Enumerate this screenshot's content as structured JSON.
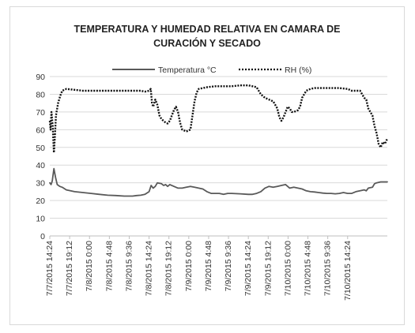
{
  "chart_data": {
    "type": "line",
    "title": [
      "TEMPERATURA Y HUMEDAD RELATIVA EN CAMARA DE",
      "CURACIÓN Y SECADO"
    ],
    "xlabel": "",
    "ylabel": "",
    "ylim": [
      0,
      90
    ],
    "yticks": [
      0,
      10,
      20,
      30,
      40,
      50,
      60,
      70,
      80,
      90
    ],
    "grid": true,
    "legend": "top",
    "x_tick_labels": [
      "7/7/2015 14:24",
      "7/7/2015 19:12",
      "7/8/2015 0:00",
      "7/8/2015 4:48",
      "7/8/2015 9:36",
      "7/8/2015 14:24",
      "7/8/2015 19:12",
      "7/9/2015 0:00",
      "7/9/2015 4:48",
      "7/9/2015 9:36",
      "7/9/2015 14:24",
      "7/9/2015 19:12",
      "7/10/2015 0:00",
      "7/10/2015 4:48",
      "7/10/2015 9:36",
      "7/10/2015 14:24"
    ],
    "x_hours_since_start": {
      "start": "7/7/2015 14:24",
      "end_hours": 72
    },
    "series": [
      {
        "name": "Temperatura °C",
        "style": "solid",
        "color": "#595959",
        "points": [
          [
            0,
            30
          ],
          [
            0.3,
            29
          ],
          [
            0.6,
            31
          ],
          [
            1.0,
            38
          ],
          [
            1.4,
            33
          ],
          [
            1.8,
            29
          ],
          [
            2.4,
            28
          ],
          [
            3.0,
            27.5
          ],
          [
            4,
            26
          ],
          [
            5,
            25.5
          ],
          [
            6,
            25
          ],
          [
            8,
            24.5
          ],
          [
            10,
            24
          ],
          [
            12,
            23.5
          ],
          [
            14,
            23
          ],
          [
            16,
            22.8
          ],
          [
            18,
            22.5
          ],
          [
            20,
            22.5
          ],
          [
            21,
            22.8
          ],
          [
            22,
            23
          ],
          [
            23,
            23.5
          ],
          [
            24,
            25
          ],
          [
            24.5,
            28.5
          ],
          [
            25,
            27
          ],
          [
            25.5,
            28
          ],
          [
            26,
            30
          ],
          [
            27,
            29.5
          ],
          [
            27.5,
            28.5
          ],
          [
            28,
            29
          ],
          [
            28.5,
            28
          ],
          [
            29,
            29
          ],
          [
            30,
            28
          ],
          [
            31,
            27
          ],
          [
            32,
            27
          ],
          [
            33,
            27.5
          ],
          [
            34,
            28
          ],
          [
            35,
            27.5
          ],
          [
            36,
            27
          ],
          [
            37,
            26.5
          ],
          [
            38,
            25
          ],
          [
            39,
            24
          ],
          [
            40,
            24
          ],
          [
            41,
            24
          ],
          [
            42,
            23.5
          ],
          [
            43,
            24
          ],
          [
            44,
            24
          ],
          [
            46,
            23.8
          ],
          [
            48,
            23.5
          ],
          [
            49,
            23.5
          ],
          [
            50,
            24
          ],
          [
            51,
            25
          ],
          [
            52,
            27
          ],
          [
            53,
            28
          ],
          [
            54,
            27.5
          ],
          [
            55,
            28
          ],
          [
            56,
            28.5
          ],
          [
            57,
            29
          ],
          [
            57.5,
            28
          ],
          [
            58,
            27
          ],
          [
            59,
            27.5
          ],
          [
            60,
            27
          ],
          [
            61,
            26.5
          ],
          [
            62,
            25.5
          ],
          [
            63,
            25
          ],
          [
            64,
            24.8
          ],
          [
            65,
            24.5
          ],
          [
            66,
            24.2
          ],
          [
            67,
            24
          ],
          [
            68,
            24
          ],
          [
            69,
            23.8
          ],
          [
            70,
            24
          ],
          [
            71,
            24.5
          ],
          [
            72,
            24
          ],
          [
            73,
            24
          ],
          [
            74,
            25
          ],
          [
            75,
            25.5
          ],
          [
            76,
            26
          ],
          [
            76.5,
            25.5
          ],
          [
            77,
            27
          ],
          [
            78,
            27.5
          ],
          [
            78.5,
            29.5
          ],
          [
            79,
            30
          ],
          [
            80,
            30.5
          ],
          [
            81,
            30.5
          ],
          [
            81.6,
            30.5
          ]
        ]
      },
      {
        "name": "RH (%)",
        "style": "dotted",
        "color": "#111111",
        "points": [
          [
            0,
            65
          ],
          [
            0.2,
            60
          ],
          [
            0.4,
            70
          ],
          [
            0.7,
            62
          ],
          [
            1.0,
            47
          ],
          [
            1.2,
            55
          ],
          [
            1.5,
            68
          ],
          [
            2.0,
            75
          ],
          [
            2.5,
            79
          ],
          [
            3.0,
            82
          ],
          [
            4,
            83
          ],
          [
            6,
            82.5
          ],
          [
            8,
            82
          ],
          [
            10,
            82
          ],
          [
            12,
            82
          ],
          [
            14,
            82
          ],
          [
            16,
            82
          ],
          [
            18,
            82
          ],
          [
            20,
            82
          ],
          [
            22,
            82
          ],
          [
            23,
            81.5
          ],
          [
            24,
            82
          ],
          [
            24.4,
            83
          ],
          [
            24.7,
            75
          ],
          [
            25,
            73
          ],
          [
            25.5,
            77
          ],
          [
            26,
            74
          ],
          [
            26.5,
            68
          ],
          [
            27,
            66
          ],
          [
            28,
            64
          ],
          [
            28.5,
            63.5
          ],
          [
            29,
            65
          ],
          [
            29.5,
            68
          ],
          [
            30,
            71
          ],
          [
            30.5,
            73
          ],
          [
            31,
            70
          ],
          [
            31.5,
            64
          ],
          [
            32,
            60
          ],
          [
            33,
            59
          ],
          [
            34,
            60
          ],
          [
            34.5,
            68
          ],
          [
            35,
            76
          ],
          [
            35.5,
            81
          ],
          [
            36,
            83
          ],
          [
            38,
            84
          ],
          [
            40,
            84.5
          ],
          [
            42,
            84.5
          ],
          [
            44,
            84.5
          ],
          [
            46,
            85
          ],
          [
            48,
            85
          ],
          [
            49,
            84.5
          ],
          [
            50,
            84
          ],
          [
            51,
            80
          ],
          [
            52,
            78
          ],
          [
            53,
            77
          ],
          [
            54,
            76
          ],
          [
            55,
            72
          ],
          [
            55.5,
            67
          ],
          [
            56,
            65
          ],
          [
            56.5,
            67
          ],
          [
            57,
            70
          ],
          [
            57.5,
            73
          ],
          [
            58,
            72
          ],
          [
            58.5,
            70
          ],
          [
            59,
            70
          ],
          [
            60,
            71
          ],
          [
            60.5,
            73
          ],
          [
            61,
            78
          ],
          [
            62,
            82
          ],
          [
            63,
            83
          ],
          [
            64,
            83.5
          ],
          [
            66,
            83.5
          ],
          [
            68,
            83.5
          ],
          [
            70,
            83.5
          ],
          [
            72,
            83
          ],
          [
            73,
            82
          ],
          [
            74,
            82
          ],
          [
            75,
            82
          ],
          [
            75.5,
            80
          ],
          [
            76,
            78
          ],
          [
            76.5,
            77
          ],
          [
            77,
            72
          ],
          [
            77.5,
            70
          ],
          [
            78,
            68
          ],
          [
            78.5,
            62
          ],
          [
            79,
            58
          ],
          [
            79.5,
            52
          ],
          [
            80,
            50
          ],
          [
            80.5,
            53
          ],
          [
            81,
            52
          ],
          [
            81.6,
            55
          ]
        ]
      }
    ]
  }
}
